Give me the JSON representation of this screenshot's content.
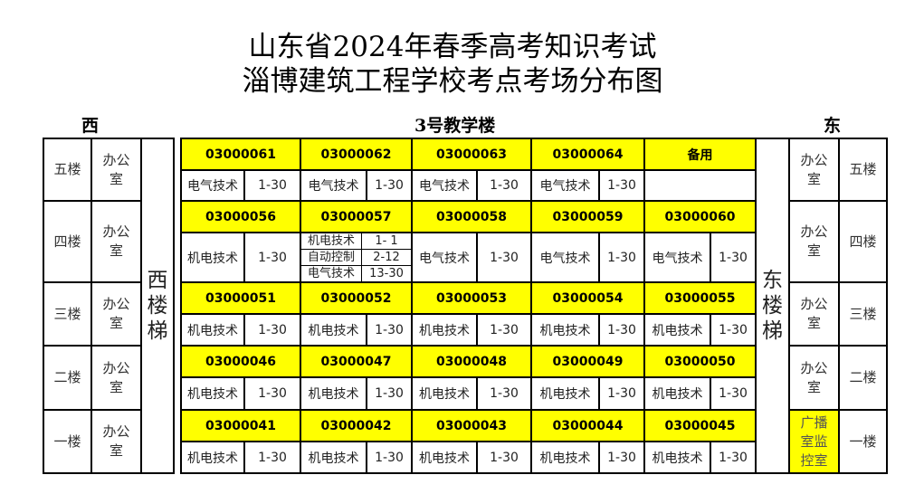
{
  "title_line1": "山东省2024年春季高考知识考试",
  "title_line2": "淄博建筑工程学校考点考场分布图",
  "west_label": "西",
  "building_label": "3号教学楼",
  "east_label": "东",
  "west_stair": "西楼梯",
  "east_stair": "东楼梯",
  "colors": {
    "highlight": "#ffff00",
    "border": "#000000"
  },
  "floors": [
    {
      "name": "五楼",
      "west_office": "办公室",
      "east_office": "办公室",
      "east_office_highlight": false,
      "rooms": [
        {
          "code": "03000061",
          "subjects": [
            {
              "name": "电气技术",
              "range": "1-30"
            }
          ]
        },
        {
          "code": "03000062",
          "subjects": [
            {
              "name": "电气技术",
              "range": "1-30"
            }
          ]
        },
        {
          "code": "03000063",
          "subjects": [
            {
              "name": "电气技术",
              "range": "1-30"
            }
          ]
        },
        {
          "code": "03000064",
          "subjects": [
            {
              "name": "电气技术",
              "range": "1-30"
            }
          ]
        },
        {
          "code": "备用",
          "subjects": []
        }
      ]
    },
    {
      "name": "四楼",
      "west_office": "办公室",
      "east_office": "办公室",
      "east_office_highlight": false,
      "rooms": [
        {
          "code": "03000056",
          "subjects": [
            {
              "name": "机电技术",
              "range": "1-30"
            }
          ]
        },
        {
          "code": "03000057",
          "subjects": [
            {
              "name": "机电技术",
              "range": "1- 1"
            },
            {
              "name": "自动控制",
              "range": "2-12"
            },
            {
              "name": "电气技术",
              "range": "13-30"
            }
          ]
        },
        {
          "code": "03000058",
          "subjects": [
            {
              "name": "电气技术",
              "range": "1-30"
            }
          ]
        },
        {
          "code": "03000059",
          "subjects": [
            {
              "name": "电气技术",
              "range": "1-30"
            }
          ]
        },
        {
          "code": "03000060",
          "subjects": [
            {
              "name": "电气技术",
              "range": "1-30"
            }
          ]
        }
      ]
    },
    {
      "name": "三楼",
      "west_office": "办公室",
      "east_office": "办公室",
      "east_office_highlight": false,
      "rooms": [
        {
          "code": "03000051",
          "subjects": [
            {
              "name": "机电技术",
              "range": "1-30"
            }
          ]
        },
        {
          "code": "03000052",
          "subjects": [
            {
              "name": "机电技术",
              "range": "1-30"
            }
          ]
        },
        {
          "code": "03000053",
          "subjects": [
            {
              "name": "机电技术",
              "range": "1-30"
            }
          ]
        },
        {
          "code": "03000054",
          "subjects": [
            {
              "name": "机电技术",
              "range": "1-30"
            }
          ]
        },
        {
          "code": "03000055",
          "subjects": [
            {
              "name": "机电技术",
              "range": "1-30"
            }
          ]
        }
      ]
    },
    {
      "name": "二楼",
      "west_office": "办公室",
      "east_office": "办公室",
      "east_office_highlight": false,
      "rooms": [
        {
          "code": "03000046",
          "subjects": [
            {
              "name": "机电技术",
              "range": "1-30"
            }
          ]
        },
        {
          "code": "03000047",
          "subjects": [
            {
              "name": "机电技术",
              "range": "1-30"
            }
          ]
        },
        {
          "code": "03000048",
          "subjects": [
            {
              "name": "机电技术",
              "range": "1-30"
            }
          ]
        },
        {
          "code": "03000049",
          "subjects": [
            {
              "name": "机电技术",
              "range": "1-30"
            }
          ]
        },
        {
          "code": "03000050",
          "subjects": [
            {
              "name": "机电技术",
              "range": "1-30"
            }
          ]
        }
      ]
    },
    {
      "name": "一楼",
      "west_office": "办公室",
      "east_office": "广播室监控室",
      "east_office_highlight": true,
      "rooms": [
        {
          "code": "03000041",
          "subjects": [
            {
              "name": "机电技术",
              "range": "1-30"
            }
          ]
        },
        {
          "code": "03000042",
          "subjects": [
            {
              "name": "机电技术",
              "range": "1-30"
            }
          ]
        },
        {
          "code": "03000043",
          "subjects": [
            {
              "name": "机电技术",
              "range": "1-30"
            }
          ]
        },
        {
          "code": "03000044",
          "subjects": [
            {
              "name": "机电技术",
              "range": "1-30"
            }
          ]
        },
        {
          "code": "03000045",
          "subjects": [
            {
              "name": "机电技术",
              "range": "1-30"
            }
          ]
        }
      ]
    }
  ]
}
